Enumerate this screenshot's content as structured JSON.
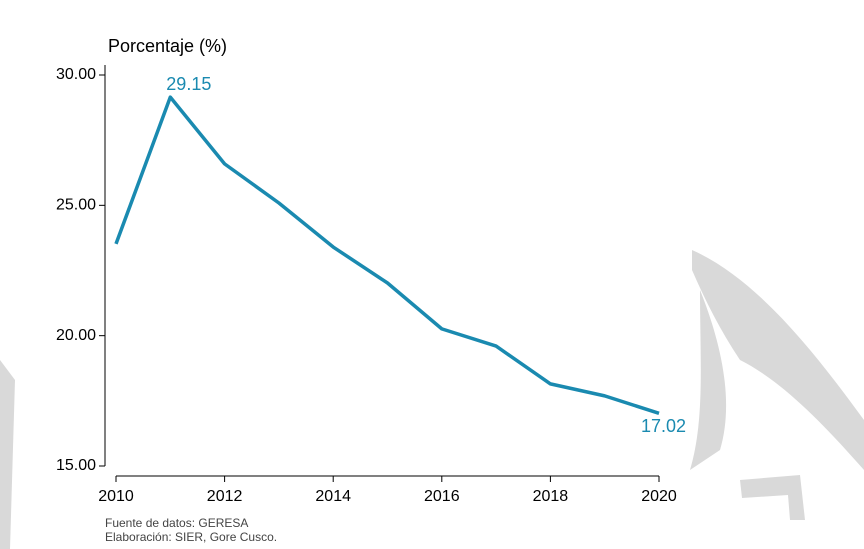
{
  "chart_data": {
    "type": "line",
    "y_label": "Porcentaje (%)",
    "notes": [
      "Fuente de datos: GERESA",
      "Elaboración: SIER, Gore Cusco."
    ],
    "x": [
      2010,
      2011,
      2012,
      2013,
      2014,
      2015,
      2016,
      2017,
      2018,
      2019,
      2020
    ],
    "series": [
      {
        "name": "Porcentaje",
        "color": "#1a8ab0",
        "values": [
          23.52,
          29.15,
          26.59,
          25.09,
          23.4,
          22.02,
          20.26,
          19.6,
          18.15,
          17.69,
          17.02
        ]
      }
    ],
    "data_labels": "max_and_last",
    "xlim": [
      2010,
      2020
    ],
    "xticks": [
      2010,
      2012,
      2014,
      2016,
      2018,
      2020
    ],
    "ylim": [
      15,
      30
    ],
    "yticks": [
      {
        "value": 15,
        "label": "15.00"
      },
      {
        "value": 20,
        "label": "20.00"
      },
      {
        "value": 25,
        "label": "25.00"
      },
      {
        "value": 30,
        "label": "30.00"
      }
    ],
    "grid": false
  }
}
